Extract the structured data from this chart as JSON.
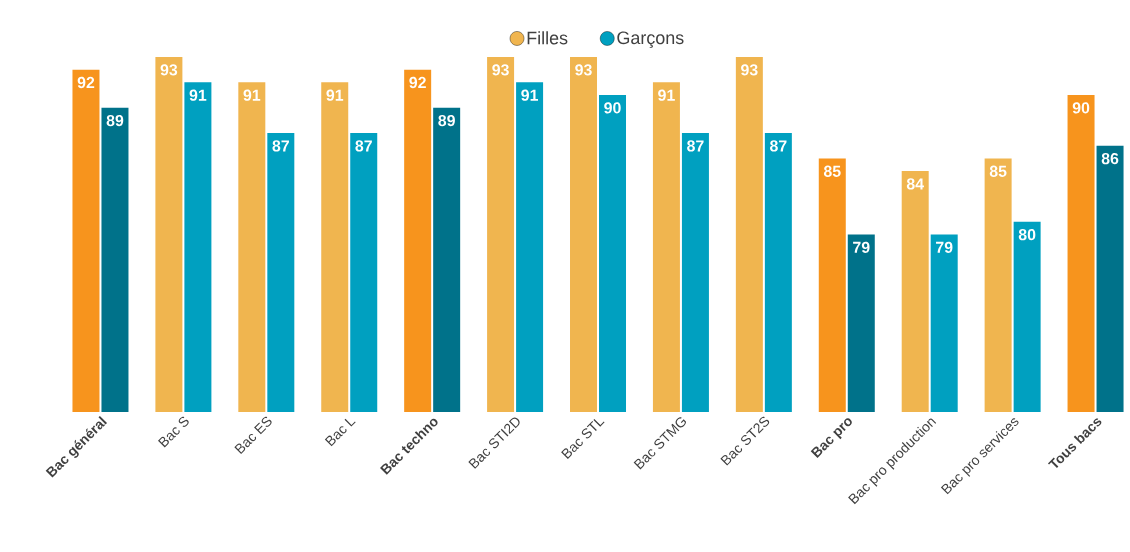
{
  "chart_data": {
    "type": "bar",
    "categories": [
      "**Bac général**",
      "Bac S",
      "Bac ES",
      "Bac L",
      "**Bac techno**",
      "Bac STI2D",
      "Bac STL",
      "Bac STMG",
      "Bac ST2S",
      "**Bac pro**",
      "Bac pro production",
      "Bac pro services",
      "**Tous bacs**"
    ],
    "series": [
      {
        "name": "Filles",
        "color": "#f0b54f",
        "values": [
          92,
          93,
          91,
          91,
          92,
          93,
          93,
          91,
          93,
          85,
          84,
          85,
          90
        ],
        "colors": [
          "#f7941d",
          "#f0b54f",
          "#f0b54f",
          "#f0b54f",
          "#f7941d",
          "#f0b54f",
          "#f0b54f",
          "#f0b54f",
          "#f0b54f",
          "#f7941d",
          "#f0b54f",
          "#f0b54f",
          "#f7941d"
        ]
      },
      {
        "name": "Garçons",
        "color": "#00a0c0",
        "values": [
          89,
          91,
          87,
          87,
          89,
          91,
          90,
          87,
          87,
          79,
          79,
          80,
          86
        ],
        "colors": [
          "#00728a",
          "#00a0c0",
          "#00a0c0",
          "#00a0c0",
          "#00728a",
          "#00a0c0",
          "#00a0c0",
          "#00a0c0",
          "#00a0c0",
          "#00728a",
          "#00a0c0",
          "#00a0c0",
          "#00728a"
        ]
      }
    ],
    "ylim": [
      65,
      93
    ],
    "data_labels": true,
    "legend": "top"
  }
}
